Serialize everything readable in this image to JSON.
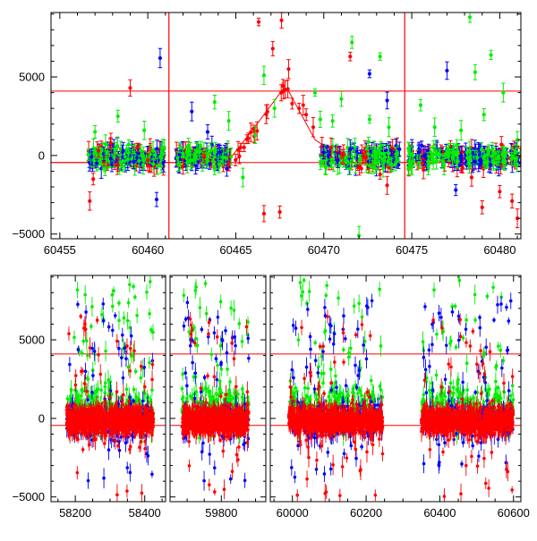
{
  "chart_data": [
    {
      "type": "scatter",
      "title": "",
      "xlabel": "",
      "ylabel": "",
      "xlim": [
        60454.5,
        60481.2
      ],
      "ylim": [
        -5300,
        9100
      ],
      "x_ticks": [
        60455,
        60460,
        60465,
        60470,
        60475,
        60480
      ],
      "x_tick_labels": [
        "60455",
        "60460",
        "60465",
        "60470",
        "60475",
        "60480"
      ],
      "y_ticks": [
        -5000,
        0,
        5000
      ],
      "y_tick_labels": [
        "−5000",
        "0",
        "5000"
      ],
      "hlines": [
        4100,
        -450
      ],
      "vlines": [
        60461.2,
        60474.6
      ],
      "model_curve": {
        "x": [
          60454.5,
          60464.5,
          60466.0,
          60467.6,
          60468.0,
          60469.5,
          60471.5,
          60481.2
        ],
        "y": [
          -450,
          -450,
          1700,
          4100,
          4100,
          1000,
          -450,
          -450
        ]
      },
      "series": [
        {
          "color": "#ff0000",
          "points": [
            {
              "x": 60456.7,
              "y": -2900
            },
            {
              "x": 60456.9,
              "y": -1500
            },
            {
              "x": 60457.2,
              "y": 300
            },
            {
              "x": 60457.5,
              "y": -400
            },
            {
              "x": 60457.9,
              "y": 800
            },
            {
              "x": 60458.3,
              "y": -600
            },
            {
              "x": 60459.0,
              "y": 4300
            },
            {
              "x": 60459.4,
              "y": 500
            },
            {
              "x": 60460.0,
              "y": -300
            },
            {
              "x": 60462.0,
              "y": -700
            },
            {
              "x": 60463.2,
              "y": -100
            },
            {
              "x": 60464.6,
              "y": -500
            },
            {
              "x": 60466.0,
              "y": 1700
            },
            {
              "x": 60466.3,
              "y": 8500
            },
            {
              "x": 60466.6,
              "y": -3700
            },
            {
              "x": 60467.1,
              "y": 6800
            },
            {
              "x": 60467.5,
              "y": -3600
            },
            {
              "x": 60467.6,
              "y": 8600
            },
            {
              "x": 60467.8,
              "y": 4200
            },
            {
              "x": 60468.0,
              "y": 5500
            },
            {
              "x": 60468.2,
              "y": 3300
            },
            {
              "x": 60468.6,
              "y": 3000
            },
            {
              "x": 60469.0,
              "y": 2600
            },
            {
              "x": 60469.4,
              "y": 1800
            },
            {
              "x": 60469.9,
              "y": 600
            },
            {
              "x": 60471.5,
              "y": 6300
            },
            {
              "x": 60472.4,
              "y": -100
            },
            {
              "x": 60473.2,
              "y": -1200
            },
            {
              "x": 60473.6,
              "y": -1900
            },
            {
              "x": 60475.6,
              "y": -500
            },
            {
              "x": 60477.9,
              "y": -800
            },
            {
              "x": 60478.4,
              "y": -1400
            },
            {
              "x": 60479.0,
              "y": -3300
            },
            {
              "x": 60480.0,
              "y": -2300
            },
            {
              "x": 60480.7,
              "y": -2900
            },
            {
              "x": 60481.0,
              "y": -4000
            }
          ]
        },
        {
          "color": "#0000ff",
          "points": [
            {
              "x": 60456.8,
              "y": -100
            },
            {
              "x": 60457.1,
              "y": -500
            },
            {
              "x": 60457.5,
              "y": 100
            },
            {
              "x": 60457.9,
              "y": -200
            },
            {
              "x": 60458.6,
              "y": 300
            },
            {
              "x": 60459.2,
              "y": -400
            },
            {
              "x": 60460.5,
              "y": -2800
            },
            {
              "x": 60460.7,
              "y": 6200
            },
            {
              "x": 60462.5,
              "y": 2800
            },
            {
              "x": 60463.4,
              "y": 1500
            },
            {
              "x": 60464.1,
              "y": 200
            },
            {
              "x": 60470.0,
              "y": 200
            },
            {
              "x": 60470.8,
              "y": -300
            },
            {
              "x": 60471.5,
              "y": 400
            },
            {
              "x": 60472.6,
              "y": 5200
            },
            {
              "x": 60473.6,
              "y": 3500
            },
            {
              "x": 60474.3,
              "y": 400
            },
            {
              "x": 60475.4,
              "y": 200
            },
            {
              "x": 60477.0,
              "y": 5400
            },
            {
              "x": 60477.5,
              "y": -2200
            },
            {
              "x": 60478.6,
              "y": -400
            }
          ]
        },
        {
          "color": "#00ee00",
          "points": [
            {
              "x": 60457.0,
              "y": 1500
            },
            {
              "x": 60457.6,
              "y": 700
            },
            {
              "x": 60458.3,
              "y": 2500
            },
            {
              "x": 60458.8,
              "y": 400
            },
            {
              "x": 60459.8,
              "y": 1600
            },
            {
              "x": 60460.3,
              "y": 300
            },
            {
              "x": 60463.0,
              "y": 600
            },
            {
              "x": 60463.8,
              "y": 3400
            },
            {
              "x": 60464.6,
              "y": 2200
            },
            {
              "x": 60465.4,
              "y": -1400
            },
            {
              "x": 60466.1,
              "y": 1300
            },
            {
              "x": 60466.6,
              "y": 5100
            },
            {
              "x": 60467.2,
              "y": 3000
            },
            {
              "x": 60469.5,
              "y": 4000
            },
            {
              "x": 60469.8,
              "y": 2300
            },
            {
              "x": 60470.5,
              "y": 2200
            },
            {
              "x": 60471.0,
              "y": 3600
            },
            {
              "x": 60471.6,
              "y": 7200
            },
            {
              "x": 60472.0,
              "y": -5100
            },
            {
              "x": 60472.6,
              "y": 2300
            },
            {
              "x": 60473.2,
              "y": 6300
            },
            {
              "x": 60473.7,
              "y": 1800
            },
            {
              "x": 60474.8,
              "y": -800
            },
            {
              "x": 60475.5,
              "y": 3200
            },
            {
              "x": 60476.3,
              "y": 1800
            },
            {
              "x": 60477.1,
              "y": 400
            },
            {
              "x": 60477.8,
              "y": 1600
            },
            {
              "x": 60478.3,
              "y": 8800
            },
            {
              "x": 60478.6,
              "y": 5300
            },
            {
              "x": 60479.1,
              "y": 2600
            },
            {
              "x": 60479.5,
              "y": 6400
            },
            {
              "x": 60480.2,
              "y": 4000
            },
            {
              "x": 60481.0,
              "y": 1000
            }
          ]
        }
      ]
    },
    {
      "type": "scatter",
      "title": "",
      "xlabel": "",
      "ylabel": "",
      "broken_axis": true,
      "segments": [
        {
          "xlim": [
            58130,
            58460
          ],
          "x_ticks": [
            58200,
            58400
          ],
          "x_tick_labels": [
            "58200",
            "58400"
          ]
        },
        {
          "xlim": [
            59650,
            59930
          ],
          "x_ticks": [
            59800
          ],
          "x_tick_labels": [
            "59800"
          ]
        },
        {
          "xlim": [
            59940,
            60620
          ],
          "x_ticks": [
            60000,
            60200,
            60400,
            60600
          ],
          "x_tick_labels": [
            "60000",
            "60200",
            "60400",
            "60600"
          ]
        }
      ],
      "ylim": [
        -5300,
        9100
      ],
      "y_ticks": [
        -5000,
        0,
        5000
      ],
      "y_tick_labels": [
        "−5000",
        "0",
        "5000"
      ],
      "hlines": [
        4100,
        -450
      ],
      "season_ranges": [
        [
          58175,
          58425
        ],
        [
          59685,
          59880
        ],
        [
          59990,
          60245
        ],
        [
          60350,
          60600
        ]
      ],
      "series": [
        {
          "color": "#00ee00",
          "spread": [
            -1200,
            8800
          ]
        },
        {
          "color": "#0000ff",
          "spread": [
            -4000,
            7500
          ]
        },
        {
          "color": "#ff0000",
          "spread": [
            -5000,
            6500
          ]
        }
      ]
    }
  ]
}
